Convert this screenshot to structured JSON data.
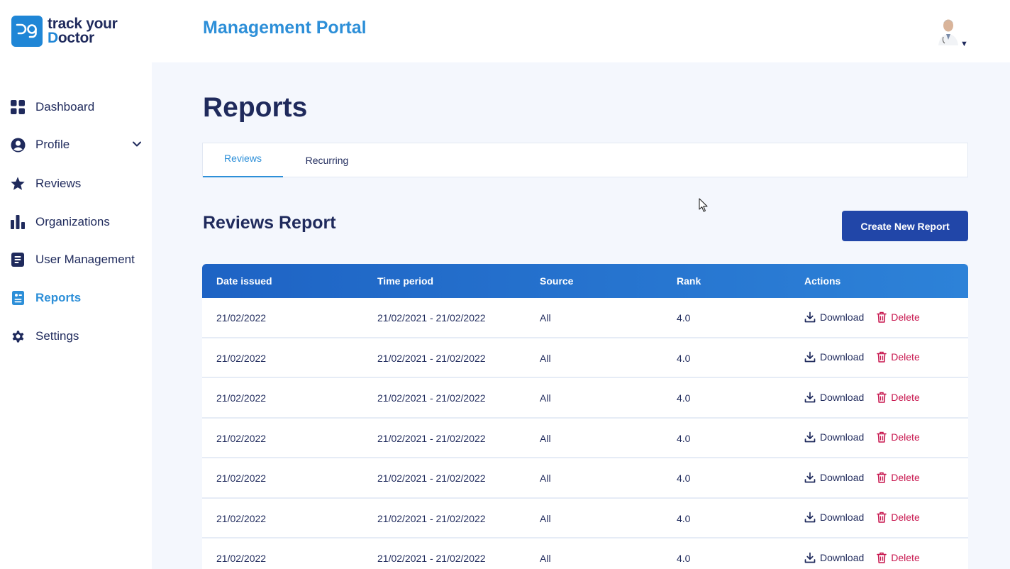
{
  "brand": {
    "line1": "track your",
    "line2_prefix": "",
    "line2_d": "D",
    "line2_rest": "octor"
  },
  "header": {
    "portal_title": "Management Portal"
  },
  "sidebar": {
    "items": [
      {
        "label": "Dashboard",
        "icon": "dashboard-grid-icon"
      },
      {
        "label": "Profile",
        "icon": "user-circle-icon",
        "has_chevron": true
      },
      {
        "label": "Reviews",
        "icon": "star-icon"
      },
      {
        "label": "Organizations",
        "icon": "bar-chart-icon"
      },
      {
        "label": "User Management",
        "icon": "document-list-icon"
      },
      {
        "label": "Reports",
        "icon": "report-icon",
        "active": true
      },
      {
        "label": "Settings",
        "icon": "gear-icon"
      }
    ]
  },
  "page": {
    "title": "Reports"
  },
  "tabs": [
    {
      "label": "Reviews",
      "active": true
    },
    {
      "label": "Recurring",
      "active": false
    }
  ],
  "report": {
    "title": "Reviews Report",
    "create_label": "Create New Report",
    "columns": [
      "Date issued",
      "Time period",
      "Source",
      "Rank",
      "Actions"
    ],
    "download_label": "Download",
    "delete_label": "Delete",
    "rows": [
      {
        "date": "21/02/2022",
        "period": "21/02/2021 - 21/02/2022",
        "source": "All",
        "rank": "4.0"
      },
      {
        "date": "21/02/2022",
        "period": "21/02/2021 - 21/02/2022",
        "source": "All",
        "rank": "4.0"
      },
      {
        "date": "21/02/2022",
        "period": "21/02/2021 - 21/02/2022",
        "source": "All",
        "rank": "4.0"
      },
      {
        "date": "21/02/2022",
        "period": "21/02/2021 - 21/02/2022",
        "source": "All",
        "rank": "4.0"
      },
      {
        "date": "21/02/2022",
        "period": "21/02/2021 - 21/02/2022",
        "source": "All",
        "rank": "4.0"
      },
      {
        "date": "21/02/2022",
        "period": "21/02/2021 - 21/02/2022",
        "source": "All",
        "rank": "4.0"
      },
      {
        "date": "21/02/2022",
        "period": "21/02/2021 - 21/02/2022",
        "source": "All",
        "rank": "4.0"
      }
    ]
  },
  "colors": {
    "primary": "#2146a8",
    "accent": "#2d8fd8",
    "danger": "#c8174f",
    "text": "#1f2a5c"
  }
}
